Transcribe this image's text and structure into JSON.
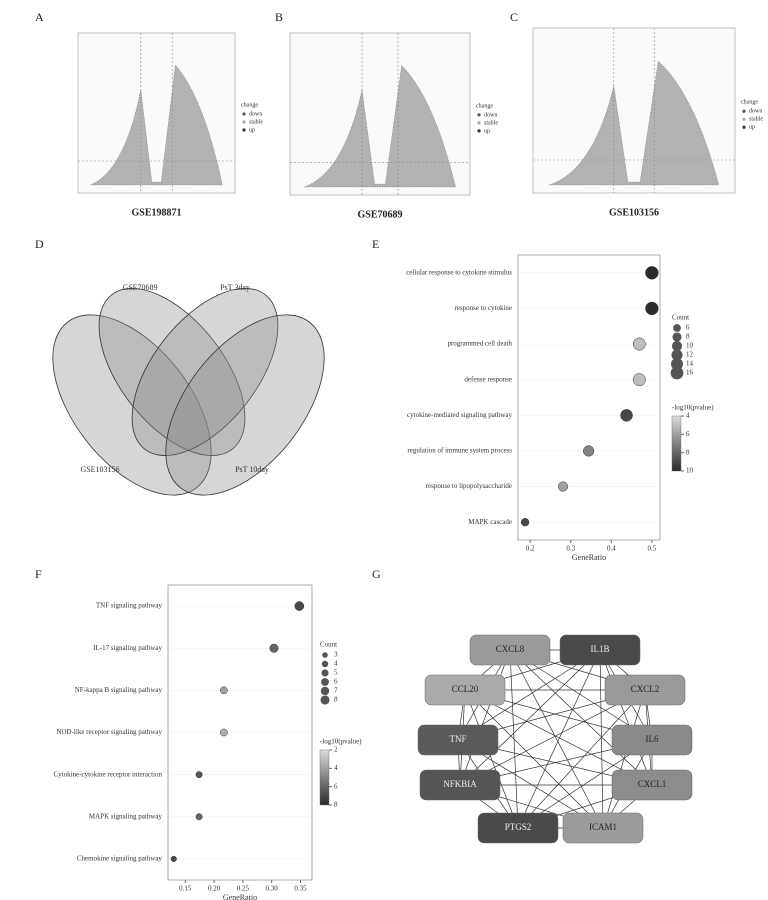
{
  "panel_labels": [
    "A",
    "B",
    "C",
    "D",
    "E",
    "F",
    "G"
  ],
  "volcano": {
    "legend_title": "change",
    "legend_items": [
      "down",
      "stable",
      "up"
    ],
    "panels": [
      {
        "caption": "GSE198871"
      },
      {
        "caption": "GSE70689"
      },
      {
        "caption": "GSE103156"
      }
    ]
  },
  "venn": {
    "sets": [
      "GSE70689",
      "PsT 3day",
      "GSE103156",
      "PsT 10day"
    ]
  },
  "chart_data": [
    {
      "type": "dot",
      "categories": [
        "cellular response to cytokine stimulus",
        "response to cytokine",
        "programmed cell death",
        "defense response",
        "cytokine-mediated signaling pathway",
        "regulation of immune system process",
        "response to lipopolysaccharide",
        "MAPK cascade"
      ],
      "values": [
        0.5,
        0.5,
        0.469,
        0.469,
        0.4375,
        0.344,
        0.281,
        0.1875
      ],
      "counts": [
        16,
        16,
        15,
        15,
        14,
        11,
        9,
        6
      ],
      "pvalue": [
        10,
        10,
        5,
        5,
        9,
        7,
        6,
        9
      ],
      "xlim": [
        0.17,
        0.52
      ],
      "xticks": [
        0.2,
        0.3,
        0.4,
        0.5
      ],
      "x_label": "GeneRatio",
      "size_legend_title": "Count",
      "size_legend": [
        6,
        8,
        10,
        12,
        14,
        16
      ],
      "color_legend_title": "-log10(pvalue)",
      "clim": [
        4,
        10
      ],
      "color_ticks": [
        4,
        6,
        8,
        10
      ],
      "color_range": [
        "#dcdcdc",
        "#2a2a2a"
      ]
    },
    {
      "type": "dot",
      "categories": [
        "TNF signaling pathway",
        "IL-17 signaling pathway",
        "NF-kappa B signaling pathway",
        "NOD-like receptor signaling pathway",
        "Cytokine-cytokine receptor interaction",
        "MAPK signaling pathway",
        "Chemokine signaling pathway"
      ],
      "values": [
        0.348,
        0.304,
        0.217,
        0.217,
        0.174,
        0.174,
        0.13
      ],
      "counts": [
        8,
        7,
        5,
        5,
        4,
        4,
        3
      ],
      "pvalue": [
        7,
        6,
        4,
        3.5,
        6.5,
        6,
        7
      ],
      "xlim": [
        0.12,
        0.37
      ],
      "xticks": [
        0.15,
        {
          "value": 0.2,
          "label": "0.20"
        },
        0.25,
        {
          "value": 0.3,
          "label": "0.30"
        },
        0.35
      ],
      "x_label": "GeneRatio",
      "size_legend_title": "Count",
      "size_legend": [
        3,
        4,
        5,
        6,
        7,
        8
      ],
      "color_legend_title": "-log10(pvalue)",
      "clim": [
        2,
        8
      ],
      "color_ticks": [
        2,
        4,
        6,
        8
      ],
      "color_range": [
        "#dcdcdc",
        "#2a2a2a"
      ]
    }
  ],
  "network": {
    "nodes": [
      {
        "label": "CXCL8"
      },
      {
        "label": "IL1B"
      },
      {
        "label": "CCL20"
      },
      {
        "label": "CXCL2"
      },
      {
        "label": "TNF"
      },
      {
        "label": "IL6"
      },
      {
        "label": "NFKBIA"
      },
      {
        "label": "CXCL1"
      },
      {
        "label": "PTGS2"
      },
      {
        "label": "ICAM1"
      }
    ]
  }
}
